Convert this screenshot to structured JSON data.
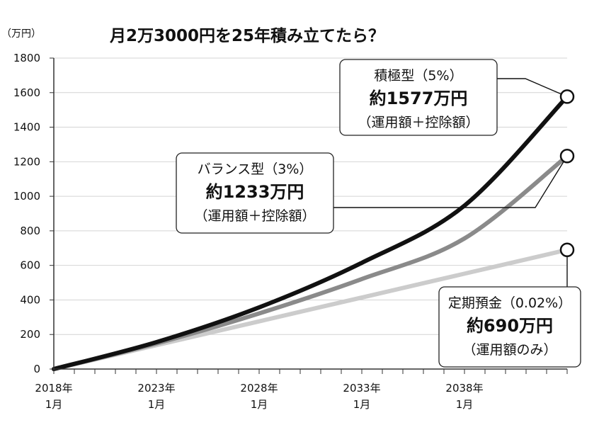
{
  "chart_data": {
    "type": "line",
    "title": "月2万3000円を25年積み立てたら？",
    "ylabel": "（万円）",
    "xlabel": "",
    "ylim": [
      0,
      1800
    ],
    "yticks": [
      0,
      200,
      400,
      600,
      800,
      1000,
      1200,
      1400,
      1600,
      1800
    ],
    "xlim": [
      "2018-01",
      "2043-01"
    ],
    "xticks": [
      {
        "value": "2018-01",
        "line1": "2018年",
        "line2": "1月"
      },
      {
        "value": "2023-01",
        "line1": "2023年",
        "line2": "1月"
      },
      {
        "value": "2028-01",
        "line1": "2028年",
        "line2": "1月"
      },
      {
        "value": "2033-01",
        "line1": "2033年",
        "line2": "1月"
      },
      {
        "value": "2038-01",
        "line1": "2038年",
        "line2": "1月"
      }
    ],
    "grid": true,
    "series": [
      {
        "name": "積極型（5%）",
        "color": "#111111",
        "x": [
          "2018-01",
          "2023-01",
          "2028-01",
          "2033-01",
          "2038-01",
          "2043-01"
        ],
        "values": [
          0,
          156,
          357,
          615,
          946,
          1577
        ]
      },
      {
        "name": "バランス型（3%）",
        "color": "#8a8a8a",
        "x": [
          "2018-01",
          "2023-01",
          "2028-01",
          "2033-01",
          "2038-01",
          "2043-01"
        ],
        "values": [
          0,
          148,
          322,
          521,
          756,
          1233
        ]
      },
      {
        "name": "定期預金（0.02%）",
        "color": "#cccccc",
        "x": [
          "2018-01",
          "2023-01",
          "2028-01",
          "2033-01",
          "2038-01",
          "2043-01"
        ],
        "values": [
          0,
          138,
          276,
          414,
          552,
          690
        ]
      }
    ],
    "callouts": [
      {
        "series": "積極型（5%）",
        "line1": "積極型（5%）",
        "line2": "約1577万円",
        "line3": "（運用額＋控除額）"
      },
      {
        "series": "バランス型（3%）",
        "line1": "バランス型（3%）",
        "line2": "約1233万円",
        "line3": "（運用額＋控除額）"
      },
      {
        "series": "定期預金（0.02%）",
        "line1": "定期預金（0.02%）",
        "line2": "約690万円",
        "line3": "（運用額のみ）"
      }
    ]
  }
}
